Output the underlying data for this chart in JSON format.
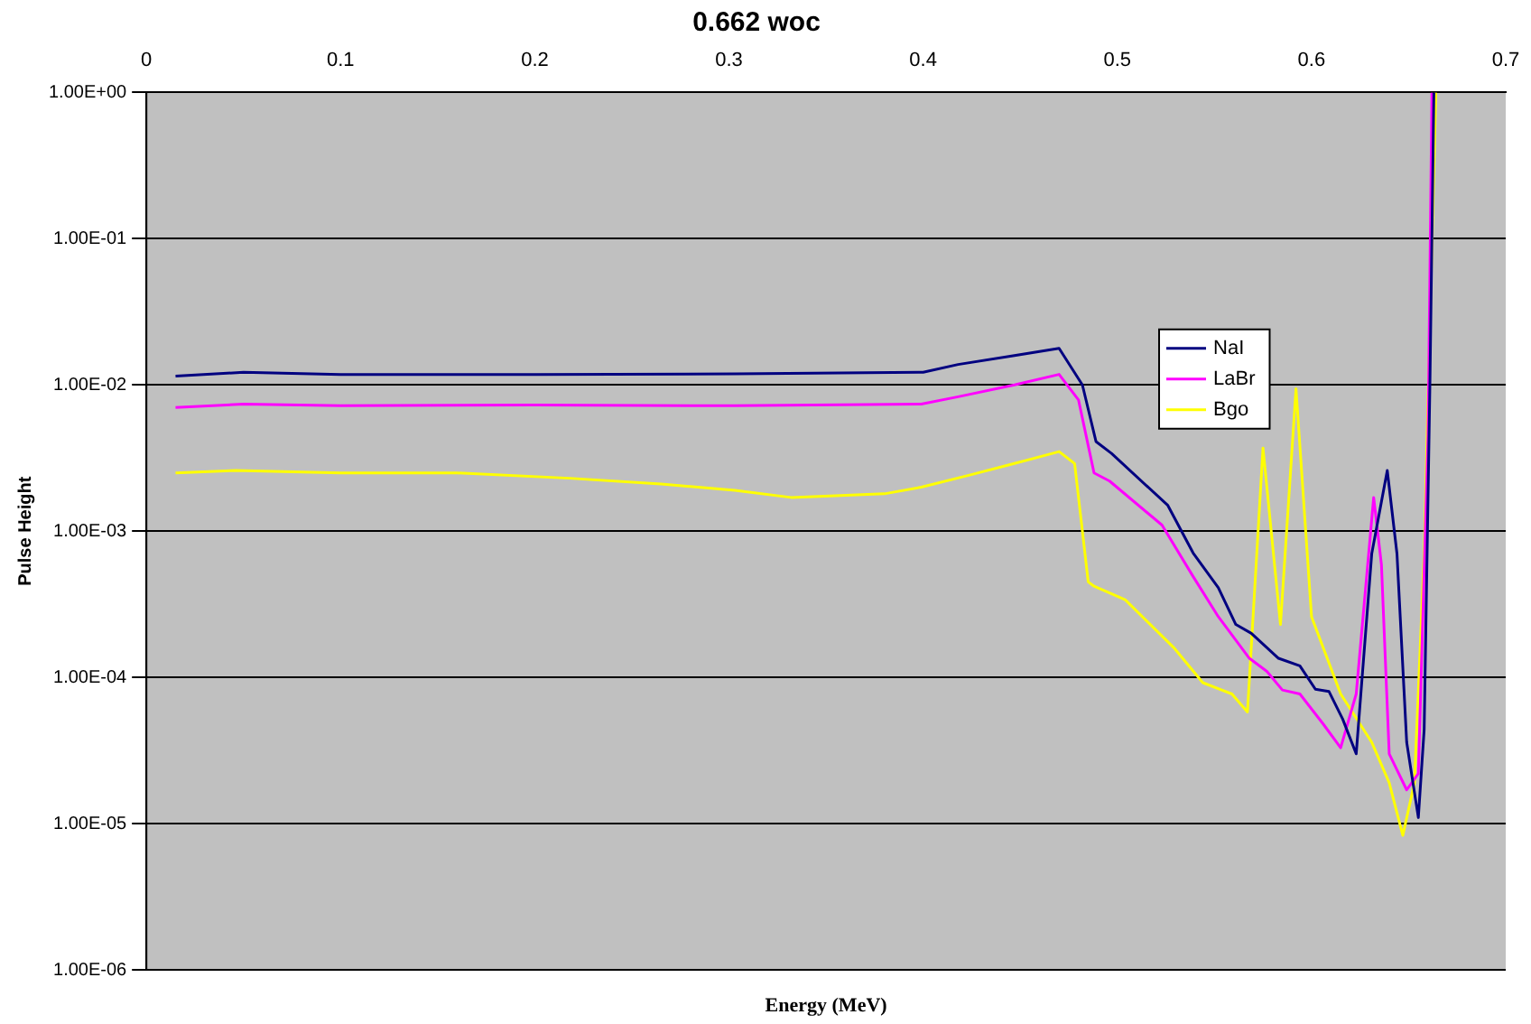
{
  "chart_data": {
    "type": "line",
    "title": "0.662 woc",
    "xlabel": "Energy (MeV)",
    "ylabel": "Pulse Height",
    "xlim": [
      0,
      0.7
    ],
    "xticks": [
      0,
      0.1,
      0.2,
      0.3,
      0.4,
      0.5,
      0.6,
      0.7
    ],
    "ylim": [
      1e-06,
      1
    ],
    "yticks": [
      {
        "value": 1e-06,
        "label": "1.00E-06"
      },
      {
        "value": 1e-05,
        "label": "1.00E-05"
      },
      {
        "value": 0.0001,
        "label": "1.00E-04"
      },
      {
        "value": 0.001,
        "label": "1.00E-03"
      },
      {
        "value": 0.01,
        "label": "1.00E-02"
      },
      {
        "value": 0.1,
        "label": "1.00E-01"
      },
      {
        "value": 1,
        "label": "1.00E+00"
      }
    ],
    "log": "y",
    "grid": "y",
    "legend": "right",
    "marker": "none",
    "line_style": "solid",
    "series": [
      {
        "name": "NaI",
        "color": "#000080",
        "x": [
          0.015,
          0.05,
          0.1,
          0.2,
          0.303,
          0.4,
          0.418,
          0.447,
          0.47,
          0.482,
          0.489,
          0.497,
          0.526,
          0.539,
          0.552,
          0.561,
          0.569,
          0.583,
          0.594,
          0.602,
          0.609,
          0.616,
          0.623,
          0.631,
          0.639,
          0.644,
          0.649,
          0.655,
          0.658,
          0.661,
          0.663
        ],
        "values": [
          0.0115,
          0.0122,
          0.0118,
          0.0118,
          0.0119,
          0.0122,
          0.0138,
          0.0159,
          0.0178,
          0.01,
          0.0041,
          0.0034,
          0.0015,
          0.00071,
          0.00041,
          0.00023,
          0.0002,
          0.000135,
          0.00012,
          8.3e-05,
          8e-05,
          5.2e-05,
          3e-05,
          0.0007,
          0.0026,
          0.0007,
          3.6e-05,
          1.1e-05,
          4.4e-05,
          0.011,
          1
        ]
      },
      {
        "name": "LaBr",
        "color": "#ff00ff",
        "x": [
          0.015,
          0.05,
          0.1,
          0.2,
          0.303,
          0.399,
          0.418,
          0.447,
          0.47,
          0.48,
          0.488,
          0.496,
          0.523,
          0.539,
          0.552,
          0.568,
          0.577,
          0.585,
          0.594,
          0.606,
          0.615,
          0.623,
          0.632,
          0.636,
          0.64,
          0.649,
          0.655,
          0.66,
          0.662
        ],
        "values": [
          0.007,
          0.0074,
          0.0072,
          0.0073,
          0.0072,
          0.0074,
          0.0083,
          0.01,
          0.0118,
          0.0079,
          0.0025,
          0.0022,
          0.0011,
          0.00049,
          0.00026,
          0.000135,
          0.00011,
          8.2e-05,
          7.7e-05,
          4.8e-05,
          3.3e-05,
          7.7e-05,
          0.0017,
          0.00059,
          3e-05,
          1.7e-05,
          2.2e-05,
          0.0045,
          1
        ]
      },
      {
        "name": "Bgo",
        "color": "#ffff00",
        "x": [
          0.015,
          0.046,
          0.1,
          0.16,
          0.218,
          0.265,
          0.303,
          0.332,
          0.38,
          0.399,
          0.423,
          0.447,
          0.47,
          0.478,
          0.485,
          0.488,
          0.504,
          0.529,
          0.544,
          0.559,
          0.567,
          0.575,
          0.584,
          0.592,
          0.6,
          0.615,
          0.631,
          0.64,
          0.647,
          0.653,
          0.658,
          0.664
        ],
        "values": [
          0.0025,
          0.0026,
          0.0025,
          0.0025,
          0.0023,
          0.0021,
          0.0019,
          0.0017,
          0.0018,
          0.002,
          0.0024,
          0.0029,
          0.0035,
          0.0029,
          0.00045,
          0.00042,
          0.00034,
          0.00016,
          9.2e-05,
          7.7e-05,
          5.8e-05,
          0.0037,
          0.00023,
          0.0094,
          0.00026,
          7.7e-05,
          3.6e-05,
          1.9e-05,
          8.3e-06,
          1.9e-05,
          0.0007,
          1
        ]
      }
    ]
  }
}
